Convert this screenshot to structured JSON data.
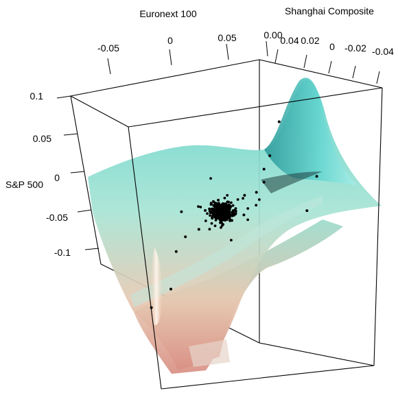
{
  "chart_data": {
    "type": "scatter",
    "surface": "density",
    "axes": {
      "x": {
        "label": "Euronext 100",
        "ticks": [
          "-0.05",
          "0",
          "0.05",
          "0.00"
        ],
        "range": [
          -0.08,
          0.1
        ]
      },
      "y": {
        "label": "Shanghai Composite",
        "ticks": [
          "0.04",
          "0.02",
          "0",
          "-0.02",
          "-0.04"
        ],
        "range": [
          -0.05,
          0.06
        ]
      },
      "z": {
        "label": "S&P 500",
        "ticks": [
          "0.1",
          "0.05",
          "0",
          "-0.05",
          "-0.1"
        ],
        "range": [
          -0.13,
          0.12
        ]
      }
    },
    "points": [
      [
        0.012,
        0.004,
        0.002
      ],
      [
        0.01,
        0.002,
        0.006
      ],
      [
        0.015,
        0.0,
        0.0
      ],
      [
        0.008,
        0.005,
        -0.004
      ],
      [
        0.02,
        0.003,
        0.004
      ],
      [
        0.005,
        0.001,
        0.008
      ],
      [
        0.018,
        -0.002,
        -0.006
      ],
      [
        0.025,
        0.004,
        0.001
      ],
      [
        -0.002,
        0.002,
        0.003
      ],
      [
        0.03,
        0.0,
        -0.002
      ],
      [
        0.014,
        0.008,
        0.01
      ],
      [
        0.006,
        -0.004,
        0.012
      ],
      [
        0.022,
        0.006,
        -0.01
      ],
      [
        -0.01,
        0.0,
        -0.015
      ],
      [
        0.035,
        0.005,
        0.015
      ],
      [
        0.04,
        -0.002,
        0.02
      ],
      [
        -0.02,
        0.004,
        -0.025
      ],
      [
        0.05,
        0.002,
        0.04
      ],
      [
        -0.03,
        0.003,
        -0.04
      ],
      [
        0.045,
        -0.004,
        0.03
      ],
      [
        0.06,
        0.008,
        0.05
      ],
      [
        -0.045,
        -0.01,
        -0.07
      ],
      [
        0.07,
        0.01,
        0.08
      ],
      [
        0.08,
        -0.015,
        0.035
      ],
      [
        -0.06,
        0.0,
        -0.1
      ],
      [
        0.06,
        -0.03,
        0.01
      ],
      [
        -0.015,
        0.015,
        -0.005
      ]
    ],
    "point_count": "about 500 daily-return observations (dense central cloud)"
  }
}
